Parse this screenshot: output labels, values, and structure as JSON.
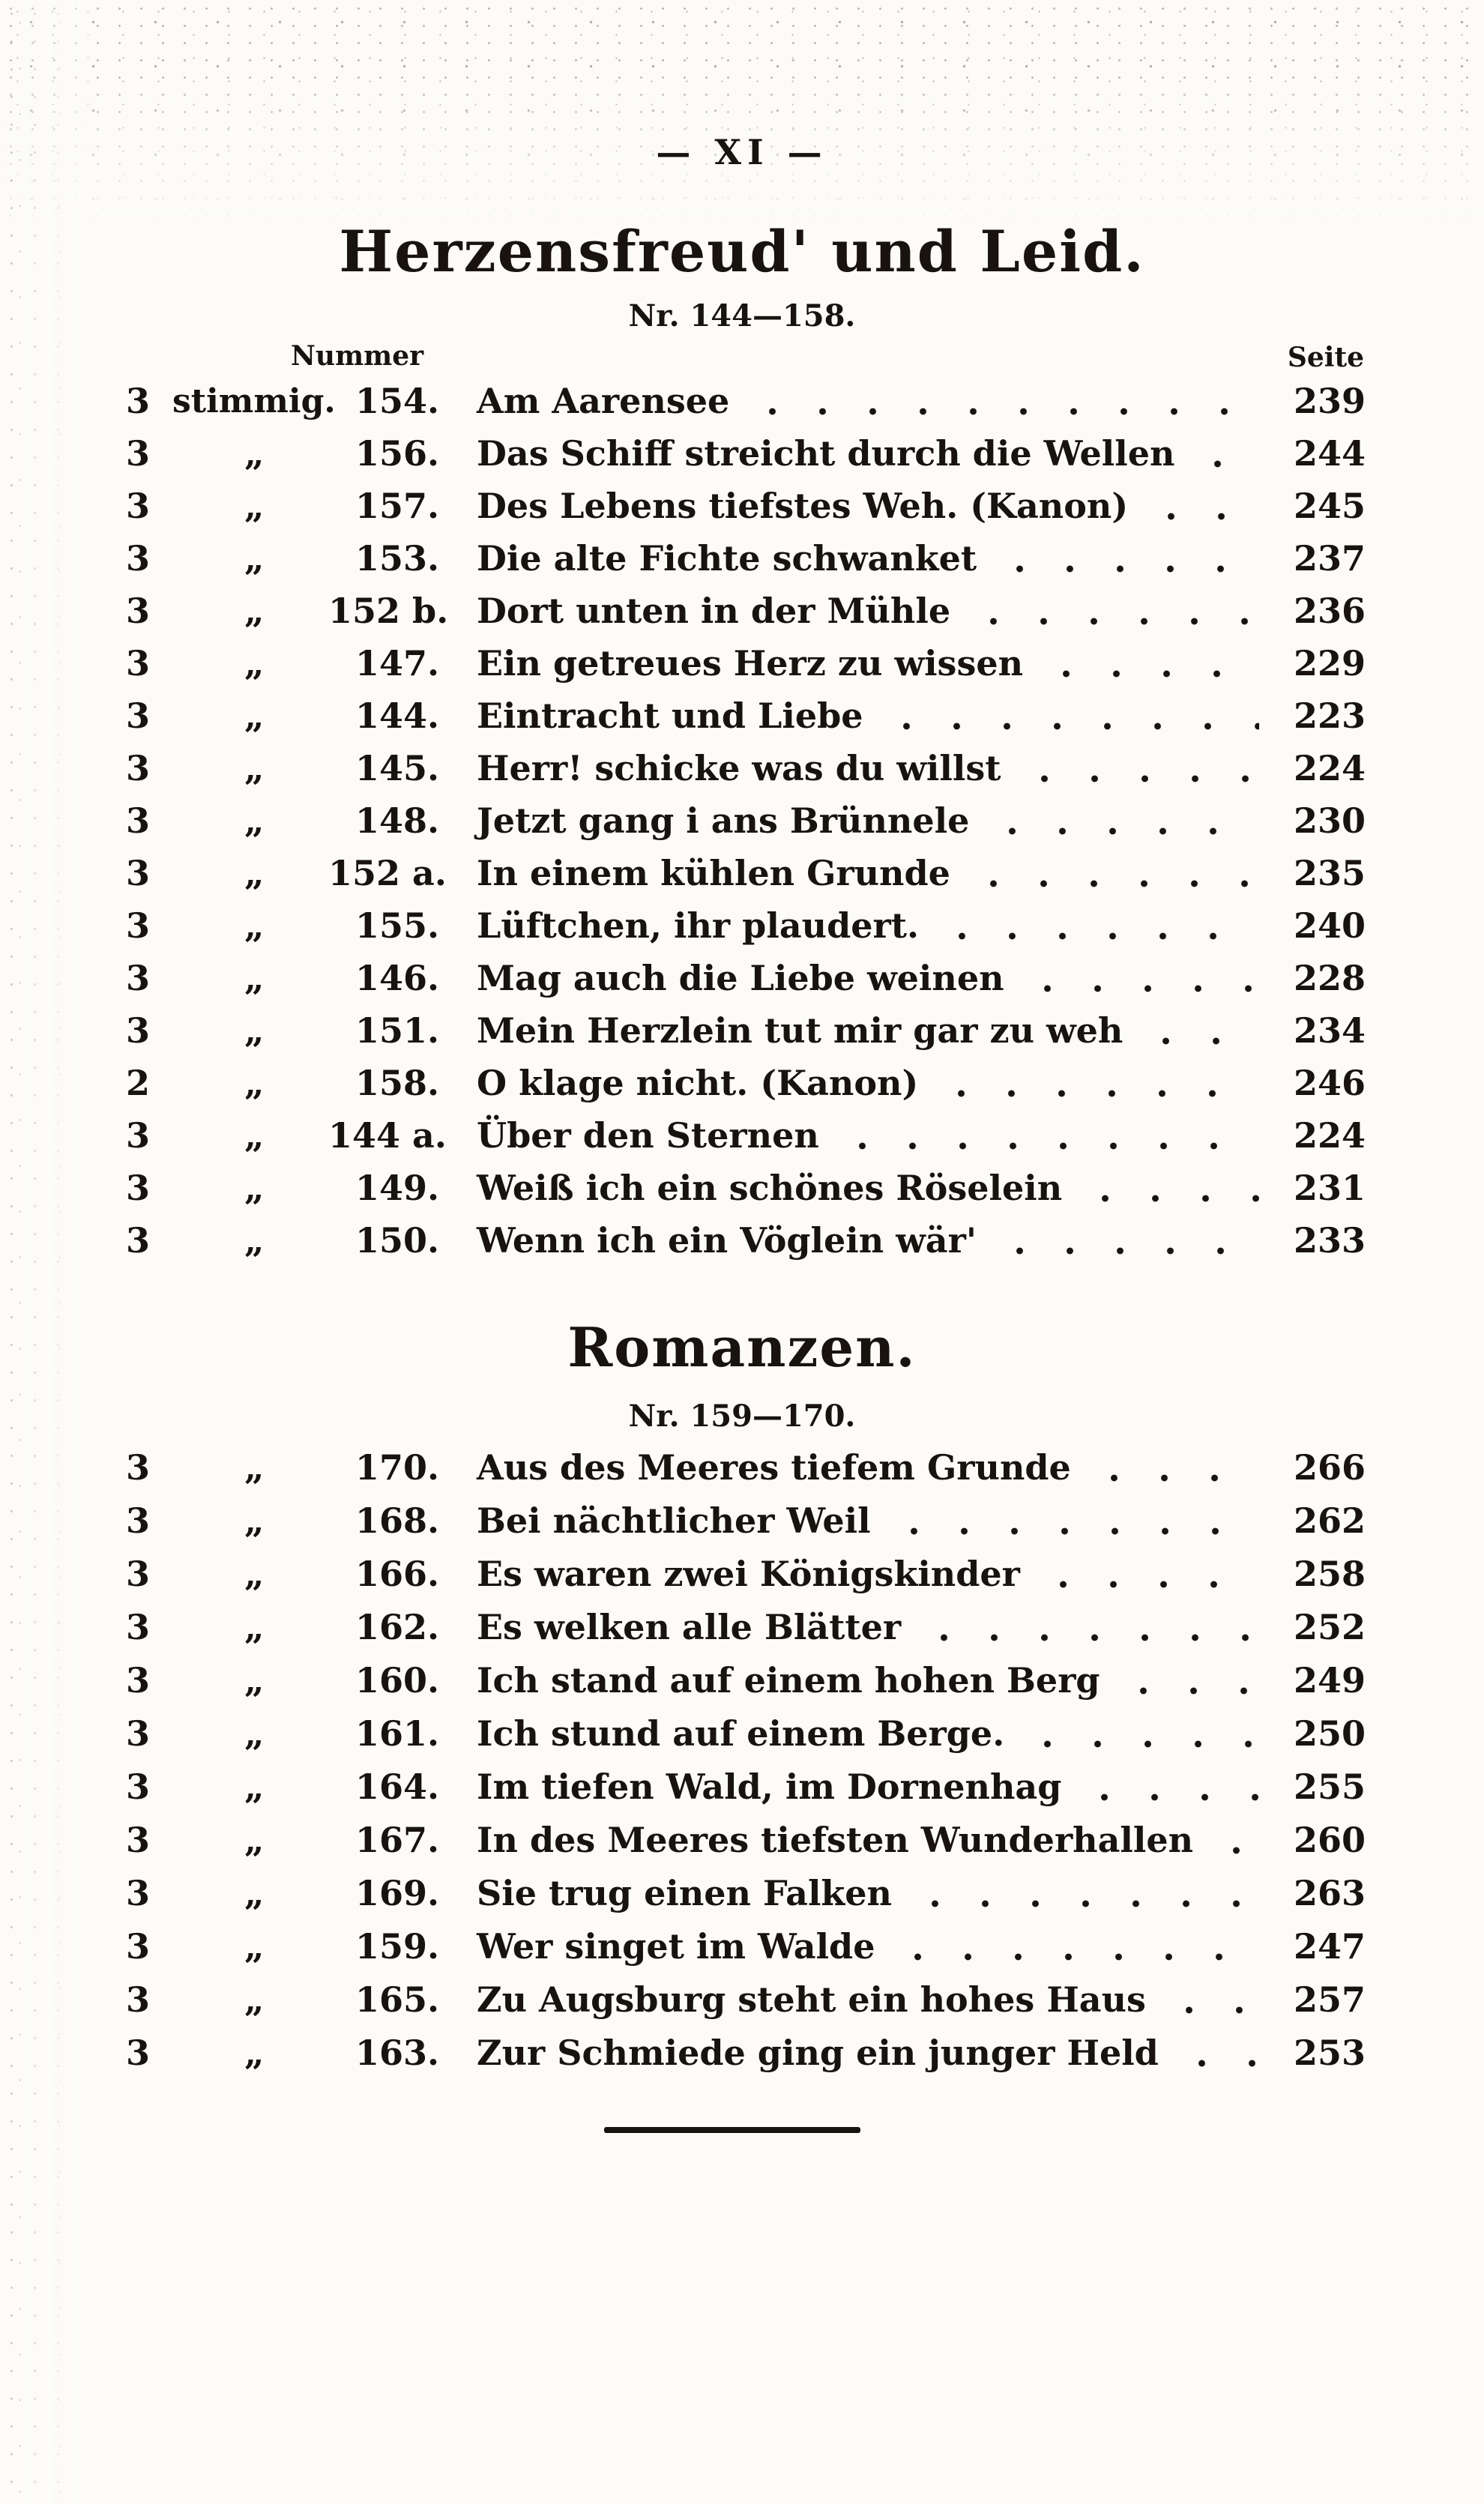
{
  "page": {
    "header": "—  XI  —",
    "colors": {
      "ink": "#18130e",
      "paper": "#fcfbf8"
    }
  },
  "sections": [
    {
      "title": "Herzensfreud' und Leid.",
      "range": "Nr. 144—158.",
      "columns": {
        "nummer": "Nummer",
        "seite": "Seite"
      },
      "rows": [
        {
          "voices": "3",
          "voices_label": "stimmig.",
          "nr": "154.",
          "title": "Am Aarensee",
          "page": "239"
        },
        {
          "voices": "3",
          "voices_label": "„",
          "nr": "156.",
          "title": "Das Schiff streicht durch die Wellen",
          "page": "244"
        },
        {
          "voices": "3",
          "voices_label": "„",
          "nr": "157.",
          "title": "Des Lebens tiefstes Weh.  (Kanon)",
          "page": "245"
        },
        {
          "voices": "3",
          "voices_label": "„",
          "nr": "153.",
          "title": "Die alte Fichte schwanket",
          "page": "237"
        },
        {
          "voices": "3",
          "voices_label": "„",
          "nr": "152 b.",
          "title": "Dort unten in der Mühle",
          "page": "236"
        },
        {
          "voices": "3",
          "voices_label": "„",
          "nr": "147.",
          "title": "Ein getreues Herz zu wissen",
          "page": "229"
        },
        {
          "voices": "3",
          "voices_label": "„",
          "nr": "144.",
          "title": "Eintracht und Liebe",
          "page": "223"
        },
        {
          "voices": "3",
          "voices_label": "„",
          "nr": "145.",
          "title": "Herr! schicke was du willst",
          "page": "224"
        },
        {
          "voices": "3",
          "voices_label": "„",
          "nr": "148.",
          "title": "Jetzt gang i ans Brünnele",
          "page": "230"
        },
        {
          "voices": "3",
          "voices_label": "„",
          "nr": "152 a.",
          "title": "In einem kühlen Grunde",
          "page": "235"
        },
        {
          "voices": "3",
          "voices_label": "„",
          "nr": "155.",
          "title": "Lüftchen, ihr plaudert.",
          "page": "240"
        },
        {
          "voices": "3",
          "voices_label": "„",
          "nr": "146.",
          "title": "Mag auch die Liebe weinen",
          "page": "228"
        },
        {
          "voices": "3",
          "voices_label": "„",
          "nr": "151.",
          "title": "Mein Herzlein tut mir gar zu weh",
          "page": "234"
        },
        {
          "voices": "2",
          "voices_label": "„",
          "nr": "158.",
          "title": "O klage nicht.  (Kanon)",
          "page": "246"
        },
        {
          "voices": "3",
          "voices_label": "„",
          "nr": "144 a.",
          "title": "Über den Sternen",
          "page": "224"
        },
        {
          "voices": "3",
          "voices_label": "„",
          "nr": "149.",
          "title": "Weiß ich ein schönes Röselein",
          "page": "231"
        },
        {
          "voices": "3",
          "voices_label": "„",
          "nr": "150.",
          "title": "Wenn ich ein Vöglein wär'",
          "page": "233"
        }
      ]
    },
    {
      "title": "Romanzen.",
      "range": "Nr. 159—170.",
      "rows": [
        {
          "voices": "3",
          "voices_label": "„",
          "nr": "170.",
          "title": "Aus des Meeres tiefem Grunde",
          "page": "266"
        },
        {
          "voices": "3",
          "voices_label": "„",
          "nr": "168.",
          "title": "Bei nächtlicher Weil",
          "page": "262"
        },
        {
          "voices": "3",
          "voices_label": "„",
          "nr": "166.",
          "title": "Es waren zwei Königskinder",
          "page": "258"
        },
        {
          "voices": "3",
          "voices_label": "„",
          "nr": "162.",
          "title": "Es welken alle Blätter",
          "page": "252"
        },
        {
          "voices": "3",
          "voices_label": "„",
          "nr": "160.",
          "title": "Ich stand auf einem hohen Berg",
          "page": "249"
        },
        {
          "voices": "3",
          "voices_label": "„",
          "nr": "161.",
          "title": "Ich stund auf einem Berge.",
          "page": "250"
        },
        {
          "voices": "3",
          "voices_label": "„",
          "nr": "164.",
          "title": "Im tiefen Wald, im Dornenhag",
          "page": "255"
        },
        {
          "voices": "3",
          "voices_label": "„",
          "nr": "167.",
          "title": "In des Meeres tiefsten Wunderhallen",
          "page": "260"
        },
        {
          "voices": "3",
          "voices_label": "„",
          "nr": "169.",
          "title": "Sie trug einen Falken",
          "page": "263"
        },
        {
          "voices": "3",
          "voices_label": "„",
          "nr": "159.",
          "title": "Wer singet im Walde",
          "page": "247"
        },
        {
          "voices": "3",
          "voices_label": "„",
          "nr": "165.",
          "title": "Zu Augsburg steht ein hohes Haus",
          "page": "257"
        },
        {
          "voices": "3",
          "voices_label": "„",
          "nr": "163.",
          "title": "Zur Schmiede ging ein junger Held",
          "page": "253"
        }
      ]
    }
  ]
}
